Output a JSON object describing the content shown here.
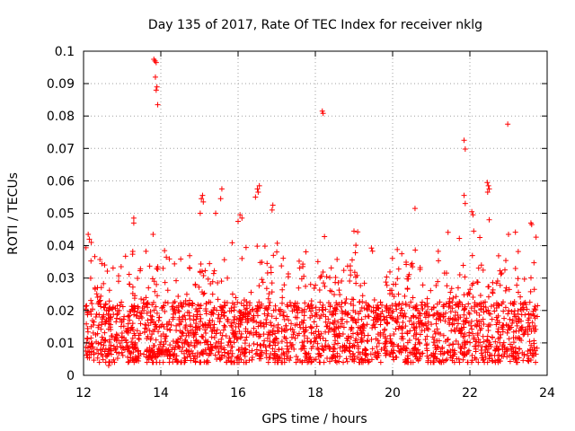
{
  "chart_data": {
    "type": "scatter",
    "title": "Day 135 of 2017, Rate Of TEC Index for receiver nklg",
    "xlabel": "GPS time / hours",
    "ylabel": "ROTI / TECUs",
    "xlim": [
      12,
      24
    ],
    "ylim": [
      0,
      0.1
    ],
    "xticks": [
      "12",
      "14",
      "16",
      "18",
      "20",
      "22",
      "24"
    ],
    "yticks": [
      "0",
      "0.01",
      "0.02",
      "0.03",
      "0.04",
      "0.05",
      "0.06",
      "0.07",
      "0.08",
      "0.09",
      "0.1"
    ],
    "grid": true,
    "marker": "+",
    "marker_color": "#ff0000",
    "series": [
      {
        "name": "ROTI",
        "notable_points": [
          {
            "x": 13.82,
            "y": 0.0975
          },
          {
            "x": 13.85,
            "y": 0.097
          },
          {
            "x": 13.88,
            "y": 0.0965
          },
          {
            "x": 13.86,
            "y": 0.092
          },
          {
            "x": 13.9,
            "y": 0.089
          },
          {
            "x": 13.88,
            "y": 0.088
          },
          {
            "x": 13.92,
            "y": 0.0835
          },
          {
            "x": 13.3,
            "y": 0.0485
          },
          {
            "x": 13.3,
            "y": 0.047
          },
          {
            "x": 13.8,
            "y": 0.0435
          },
          {
            "x": 18.18,
            "y": 0.0815
          },
          {
            "x": 18.2,
            "y": 0.0808
          },
          {
            "x": 21.85,
            "y": 0.0725
          },
          {
            "x": 21.88,
            "y": 0.0698
          },
          {
            "x": 22.98,
            "y": 0.0775
          },
          {
            "x": 22.45,
            "y": 0.0595
          },
          {
            "x": 22.48,
            "y": 0.0585
          },
          {
            "x": 22.5,
            "y": 0.0575
          },
          {
            "x": 22.46,
            "y": 0.0565
          },
          {
            "x": 22.5,
            "y": 0.048
          },
          {
            "x": 21.85,
            "y": 0.0555
          },
          {
            "x": 21.88,
            "y": 0.053
          },
          {
            "x": 20.58,
            "y": 0.0515
          },
          {
            "x": 22.05,
            "y": 0.0505
          },
          {
            "x": 22.08,
            "y": 0.0495
          },
          {
            "x": 15.08,
            "y": 0.0555
          },
          {
            "x": 15.05,
            "y": 0.0545
          },
          {
            "x": 15.1,
            "y": 0.0535
          },
          {
            "x": 15.02,
            "y": 0.05
          },
          {
            "x": 15.58,
            "y": 0.0575
          },
          {
            "x": 15.55,
            "y": 0.0545
          },
          {
            "x": 16.55,
            "y": 0.0585
          },
          {
            "x": 16.5,
            "y": 0.0575
          },
          {
            "x": 16.52,
            "y": 0.0565
          },
          {
            "x": 16.45,
            "y": 0.055
          },
          {
            "x": 16.9,
            "y": 0.0525
          },
          {
            "x": 16.88,
            "y": 0.051
          },
          {
            "x": 15.42,
            "y": 0.05
          },
          {
            "x": 16.05,
            "y": 0.0495
          },
          {
            "x": 16.1,
            "y": 0.0485
          },
          {
            "x": 16.0,
            "y": 0.0475
          },
          {
            "x": 19.0,
            "y": 0.0445
          },
          {
            "x": 12.12,
            "y": 0.0435
          },
          {
            "x": 12.15,
            "y": 0.042
          },
          {
            "x": 12.2,
            "y": 0.041
          },
          {
            "x": 23.58,
            "y": 0.047
          },
          {
            "x": 23.6,
            "y": 0.0465
          },
          {
            "x": 23.0,
            "y": 0.0435
          },
          {
            "x": 22.1,
            "y": 0.0445
          },
          {
            "x": 12.65,
            "y": 0.003
          },
          {
            "x": 23.65,
            "y": 0.006
          }
        ],
        "bulk_band": {
          "x_range": [
            12.05,
            23.75
          ],
          "typical_range": [
            0.005,
            0.028
          ],
          "median": 0.013,
          "outlier_max": 0.045
        }
      }
    ]
  }
}
